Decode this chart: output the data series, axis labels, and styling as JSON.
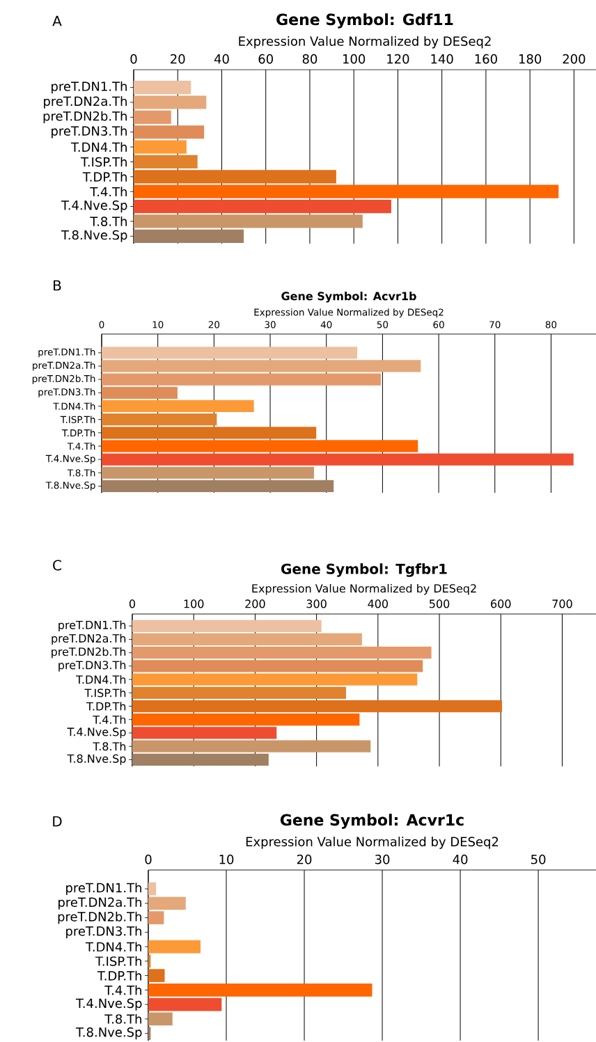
{
  "chart_data": [
    {
      "type": "bar",
      "orientation": "horizontal",
      "title": "Gene Symbol: Gdf11",
      "xlabel": "Expression Value Normalized by DESeq2",
      "annotations": [
        "A"
      ],
      "categories": [
        "preT.DN1.Th",
        "preT.DN2a.Th",
        "preT.DN2b.Th",
        "preT.DN3.Th",
        "T.DN4.Th",
        "T.ISP.Th",
        "T.DP.Th",
        "T.4.Th",
        "T.4.Nve.Sp",
        "T.8.Th",
        "T.8.Nve.Sp"
      ],
      "values": [
        26,
        33,
        17,
        32,
        24,
        29,
        92,
        193,
        117,
        104,
        50
      ],
      "colors": [
        "#ecc0a0",
        "#e4a87a",
        "#e4996b",
        "#e08c58",
        "#fd9a38",
        "#e0822e",
        "#de711b",
        "#ff6600",
        "#ee4d30",
        "#c99669",
        "#a17f63"
      ],
      "xlim": [
        0,
        210
      ],
      "xticks": [
        0,
        20,
        40,
        60,
        80,
        100,
        120,
        140,
        160,
        180,
        200
      ],
      "grid": "x"
    },
    {
      "type": "bar",
      "orientation": "horizontal",
      "title": "Gene Symbol: Acvr1b",
      "xlabel": "Expression Value Normalized by DESeq2",
      "annotations": [
        "B"
      ],
      "categories": [
        "preT.DN1.Th",
        "preT.DN2a.Th",
        "preT.DN2b.Th",
        "preT.DN3.Th",
        "T.DN4.Th",
        "T.ISP.Th",
        "T.DP.Th",
        "T.4.Th",
        "T.4.Nve.Sp",
        "T.8.Th",
        "T.8.Nve.Sp"
      ],
      "values": [
        45.5,
        56.8,
        49.7,
        13.5,
        27.1,
        20.5,
        38.2,
        56.3,
        84,
        37.8,
        41.3
      ],
      "colors": [
        "#ecc0a0",
        "#e4a87a",
        "#e4996b",
        "#e08c58",
        "#fd9a38",
        "#e0822e",
        "#de711b",
        "#ff6600",
        "#ee4d30",
        "#c99669",
        "#a17f63"
      ],
      "xlim": [
        0,
        88
      ],
      "xticks": [
        0,
        10,
        20,
        30,
        40,
        50,
        60,
        70,
        80
      ],
      "grid": "x"
    },
    {
      "type": "bar",
      "orientation": "horizontal",
      "title": "Gene Symbol: Tgfbr1",
      "xlabel": "Expression Value Normalized by DESeq2",
      "annotations": [
        "C"
      ],
      "categories": [
        "preT.DN1.Th",
        "preT.DN2a.Th",
        "preT.DN2b.Th",
        "preT.DN3.Th",
        "T.DN4.Th",
        "T.ISP.Th",
        "T.DP.Th",
        "T.4.Th",
        "T.4.Nve.Sp",
        "T.8.Th",
        "T.8.Nve.Sp"
      ],
      "values": [
        308,
        374,
        487,
        473,
        464,
        348,
        602,
        370,
        235,
        388,
        222
      ],
      "colors": [
        "#ecc0a0",
        "#e4a87a",
        "#e4996b",
        "#e08c58",
        "#fd9a38",
        "#e0822e",
        "#de711b",
        "#ff6600",
        "#ee4d30",
        "#c99669",
        "#a17f63"
      ],
      "xlim": [
        0,
        755
      ],
      "xticks": [
        0,
        100,
        200,
        300,
        400,
        500,
        600,
        700
      ],
      "grid": "x"
    },
    {
      "type": "bar",
      "orientation": "horizontal",
      "title": "Gene Symbol: Acvr1c",
      "xlabel": "Expression Value Normalized by DESeq2",
      "annotations": [
        "D"
      ],
      "categories": [
        "preT.DN1.Th",
        "preT.DN2a.Th",
        "preT.DN2b.Th",
        "preT.DN3.Th",
        "T.DN4.Th",
        "T.ISP.Th",
        "T.DP.Th",
        "T.4.Th",
        "T.4.Nve.Sp",
        "T.8.Th",
        "T.8.Nve.Sp"
      ],
      "values": [
        1.0,
        4.8,
        2.0,
        0,
        6.7,
        0.3,
        2.1,
        28.7,
        9.4,
        3.1,
        0.3
      ],
      "colors": [
        "#ecc0a0",
        "#e4a87a",
        "#e4996b",
        "#e08c58",
        "#fd9a38",
        "#e0822e",
        "#de711b",
        "#ff6600",
        "#ee4d30",
        "#c99669",
        "#a17f63"
      ],
      "xlim": [
        0,
        57.4
      ],
      "xticks": [
        0,
        10,
        20,
        30,
        40,
        50
      ],
      "grid": "x"
    }
  ]
}
